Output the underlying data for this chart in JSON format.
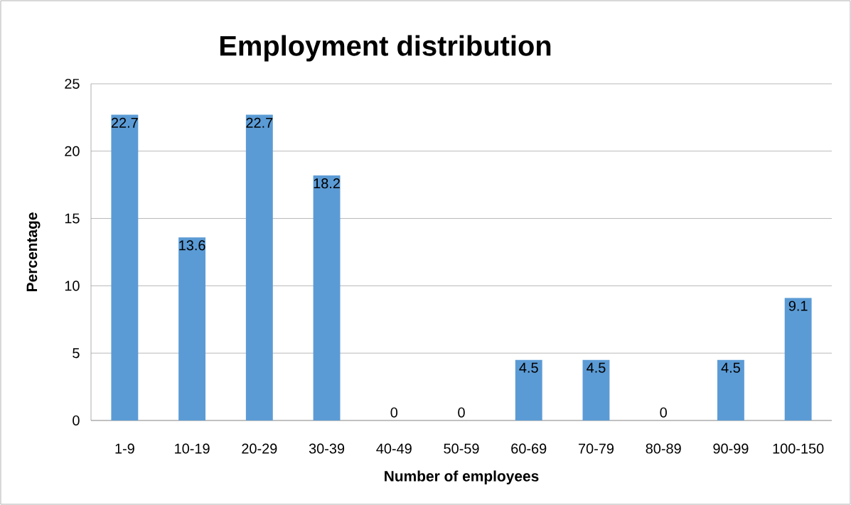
{
  "chart_data": {
    "type": "bar",
    "title": "Employment distribution",
    "xlabel": "Number of employees",
    "ylabel": "Percentage",
    "categories": [
      "1-9",
      "10-19",
      "20-29",
      "30-39",
      "40-49",
      "50-59",
      "60-69",
      "70-79",
      "80-89",
      "90-99",
      "100-150"
    ],
    "values": [
      22.7,
      13.6,
      22.7,
      18.2,
      0,
      0,
      4.5,
      4.5,
      0,
      4.5,
      9.1
    ],
    "color": "#5b9bd5",
    "ylim": [
      0,
      25
    ],
    "yticks": [
      0,
      5,
      10,
      15,
      20,
      25
    ],
    "grid": "y",
    "data_labels": true
  }
}
